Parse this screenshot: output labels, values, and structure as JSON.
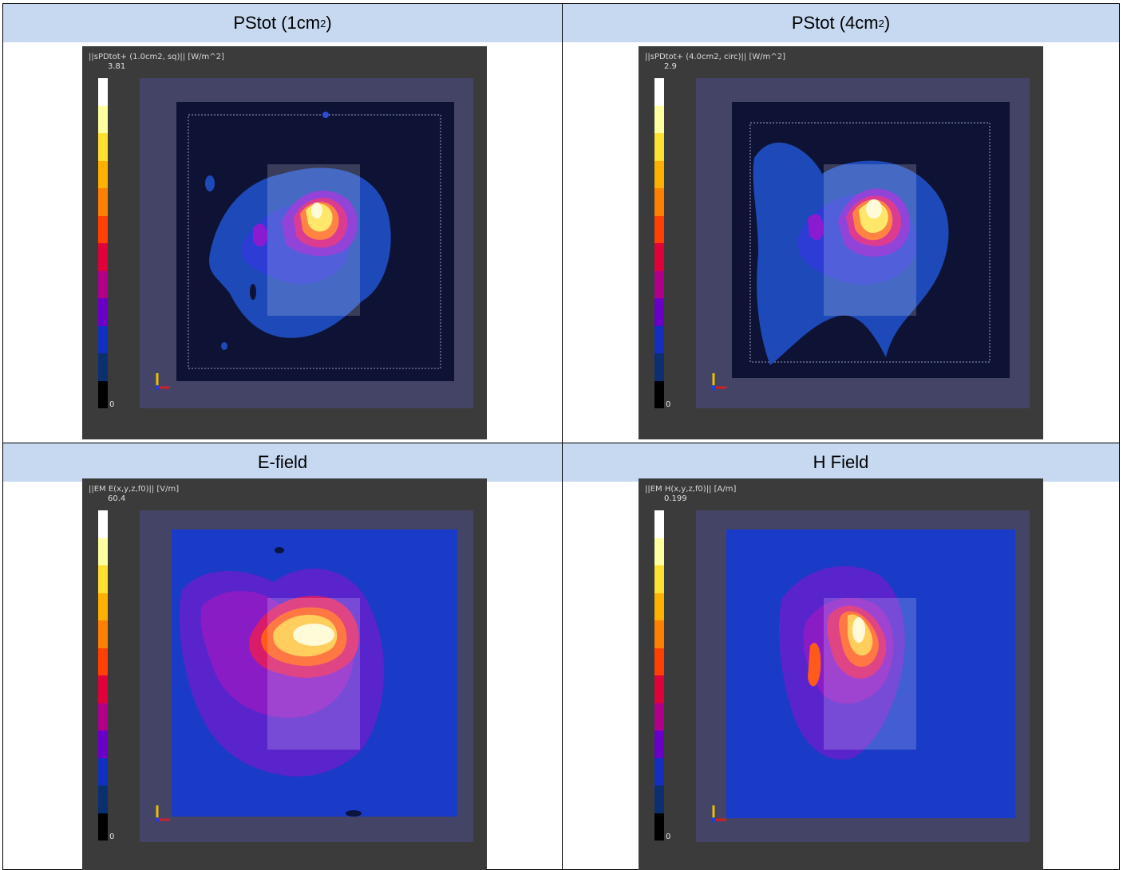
{
  "headers": {
    "pstot_1cm": "PStot (1cm",
    "pstot_1cm_sup": "2",
    "pstot_1cm_end": ")",
    "pstot_4cm": "PStot (4cm",
    "pstot_4cm_sup": "2",
    "pstot_4cm_end": ")",
    "efield": "E-field",
    "hfield": "H Field"
  },
  "panels": {
    "pstot_1cm": {
      "title": "||sPDtot+ (1.0cm2, sq)|| [W/m^2]",
      "max": "3.81",
      "min": "0"
    },
    "pstot_4cm": {
      "title": "||sPDtot+ (4.0cm2, circ)|| [W/m^2]",
      "max": "2.9",
      "min": "0"
    },
    "efield": {
      "title": "||EM E(x,y,z,f0)|| [V/m]",
      "max": "60.4",
      "min": "0"
    },
    "hfield": {
      "title": "||EM H(x,y,z,f0)|| [A/m]",
      "max": "0.199",
      "min": "0"
    }
  },
  "colorbar_colors": [
    "#ffffff",
    "#ffffa0",
    "#ffe030",
    "#ffb000",
    "#ff8000",
    "#ff4000",
    "#e0003a",
    "#b0008a",
    "#6a00c8",
    "#1030c0",
    "#0a3070",
    "#000000"
  ]
}
